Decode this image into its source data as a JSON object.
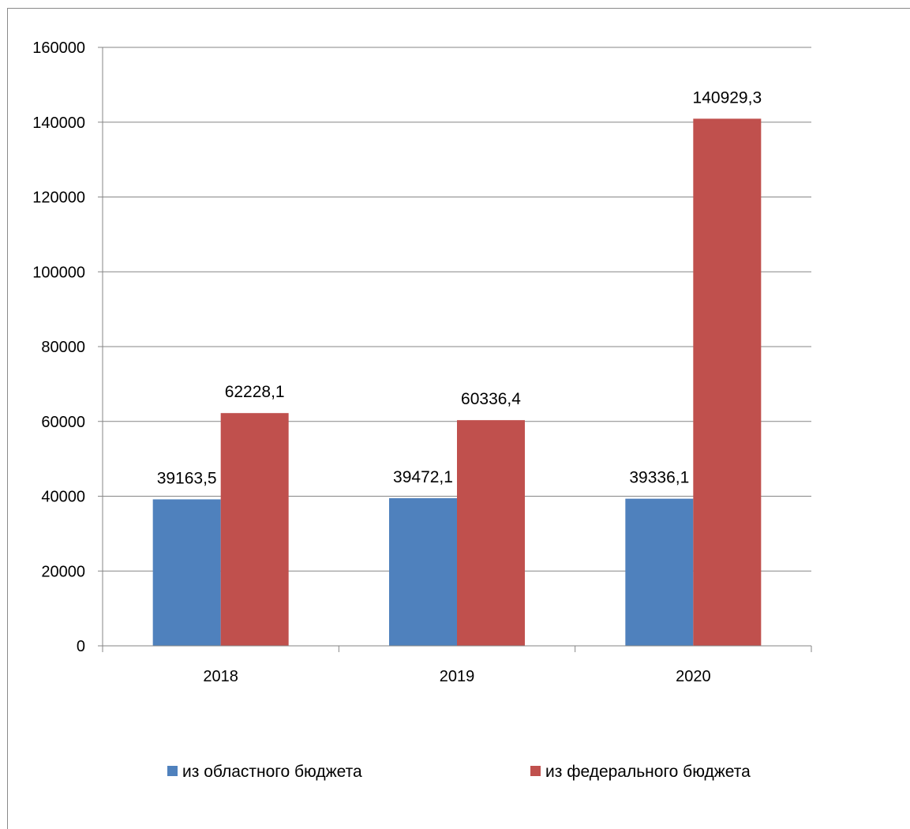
{
  "chart_data": {
    "type": "bar",
    "categories": [
      "2018",
      "2019",
      "2020"
    ],
    "series": [
      {
        "name": "из областного бюджета",
        "values": [
          39163.5,
          39472.1,
          39336.1
        ],
        "labels": [
          "39163,5",
          "39472,1",
          "39336,1"
        ],
        "color": "#4F81BD"
      },
      {
        "name": "из федерального бюджета",
        "values": [
          62228.1,
          60336.4,
          140929.3
        ],
        "labels": [
          "62228,1",
          "60336,4",
          "140929,3"
        ],
        "color": "#C0504D"
      }
    ],
    "ylim": [
      0,
      160000
    ],
    "yticks": [
      "0",
      "20000",
      "40000",
      "60000",
      "80000",
      "100000",
      "120000",
      "140000",
      "160000"
    ],
    "grid": true,
    "legend_position": "bottom"
  }
}
